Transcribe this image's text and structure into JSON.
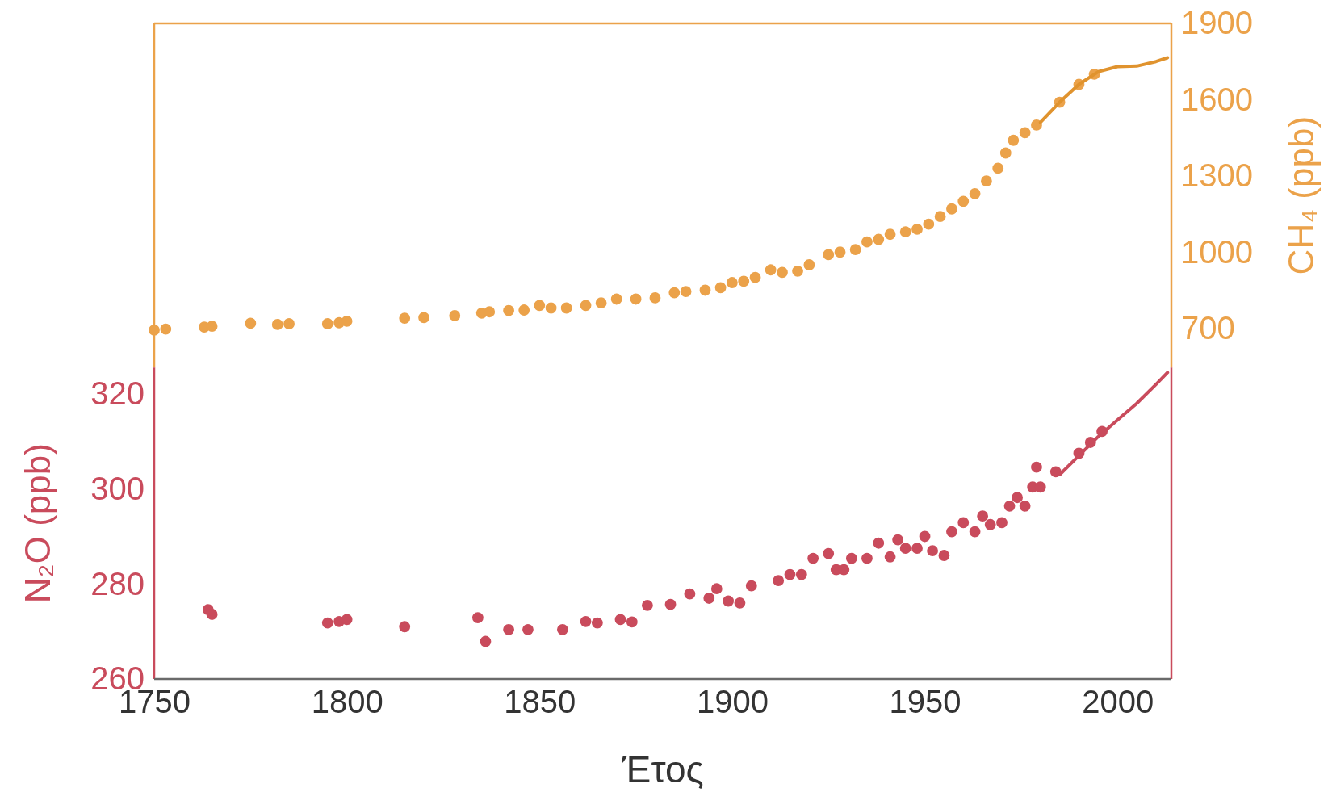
{
  "chart_data": {
    "type": "scatter",
    "xlabel": "Έτος",
    "ylabel": "N₂O (ppb)",
    "y2label": "CH₄ (ppb)",
    "xlim": [
      1750,
      2014
    ],
    "xticks": [
      1750,
      1800,
      1850,
      1900,
      1950,
      2000
    ],
    "ylim": [
      260,
      398
    ],
    "yticks": [
      260,
      280,
      300,
      320
    ],
    "y2lim": [
      -680,
      1900
    ],
    "y2ticks": [
      700,
      1000,
      1300,
      1600,
      1900
    ],
    "grid": false,
    "marker": "circle",
    "line_style": "solid",
    "series": [
      {
        "axis": "y",
        "color": "#c94b5c",
        "x": [
          1764,
          1765,
          1795,
          1798,
          1800,
          1815,
          1834,
          1836,
          1842,
          1847,
          1856,
          1862,
          1865,
          1871,
          1874,
          1878,
          1884,
          1889,
          1894,
          1896,
          1899,
          1902,
          1905,
          1912,
          1915,
          1918,
          1921,
          1925,
          1927,
          1929,
          1931,
          1935,
          1938,
          1941,
          1943,
          1945,
          1948,
          1950,
          1952,
          1955,
          1957,
          1960,
          1963,
          1965,
          1967,
          1970,
          1972,
          1974,
          1976,
          1978,
          1979,
          1980,
          1984,
          1990,
          1993,
          1996
        ],
        "values": [
          274.6,
          273.6,
          271.8,
          272.1,
          272.5,
          271,
          272.9,
          267.9,
          270.4,
          270.4,
          270.4,
          272.1,
          271.8,
          272.5,
          272,
          275.5,
          275.7,
          277.9,
          277,
          279,
          276.4,
          276,
          279.6,
          280.7,
          282,
          282,
          285.4,
          286.4,
          283,
          283,
          285.4,
          285.4,
          288.6,
          285.7,
          289.3,
          287.5,
          287.5,
          290,
          287,
          286,
          291,
          292.9,
          291,
          294.3,
          292.5,
          292.9,
          296.4,
          298.2,
          296.4,
          300.4,
          304.6,
          300.4,
          303.6,
          307.5,
          309.8,
          312.1
        ]
      },
      {
        "type": "line",
        "marker": "none",
        "axis": "y",
        "color": "#c94b5c",
        "x": [
          1985,
          1990,
          1995,
          2000,
          2005,
          2010,
          2013
        ],
        "values": [
          303,
          307,
          311,
          314.5,
          318,
          322,
          324.5
        ]
      },
      {
        "axis": "y2",
        "color": "#eba24a",
        "x": [
          1750,
          1753,
          1763,
          1765,
          1775,
          1782,
          1785,
          1795,
          1798,
          1800,
          1815,
          1820,
          1828,
          1835,
          1837,
          1842,
          1846,
          1850,
          1853,
          1857,
          1862,
          1866,
          1870,
          1875,
          1880,
          1885,
          1888,
          1893,
          1897,
          1900,
          1903,
          1906,
          1910,
          1913,
          1917,
          1920,
          1925,
          1928,
          1932,
          1935,
          1938,
          1941,
          1945,
          1948,
          1951,
          1954,
          1957,
          1960,
          1963,
          1966,
          1969,
          1971,
          1973,
          1976,
          1979,
          1985,
          1990,
          1994
        ],
        "values": [
          693,
          697,
          705,
          708,
          720,
          715,
          718,
          718,
          722,
          728,
          740,
          742,
          750,
          760,
          765,
          770,
          772,
          790,
          780,
          780,
          790,
          800,
          815,
          815,
          820,
          840,
          845,
          850,
          860,
          880,
          885,
          900,
          930,
          920,
          925,
          950,
          990,
          1000,
          1010,
          1040,
          1050,
          1070,
          1080,
          1090,
          1110,
          1140,
          1170,
          1200,
          1230,
          1280,
          1330,
          1390,
          1440,
          1470,
          1500,
          1590,
          1660,
          1700
        ]
      },
      {
        "type": "line",
        "marker": "none",
        "axis": "y2",
        "color": "#e0932e",
        "x": [
          1980,
          1985,
          1990,
          1995,
          2000,
          2005,
          2010,
          2013
        ],
        "values": [
          1510,
          1590,
          1660,
          1710,
          1730,
          1732,
          1750,
          1765
        ]
      }
    ]
  }
}
